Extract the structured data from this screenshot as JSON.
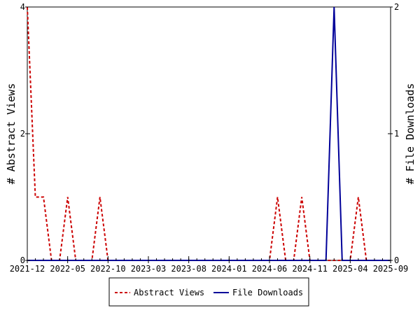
{
  "chart_data": {
    "type": "line",
    "title": "",
    "x_tick_labels": [
      "2021-12",
      "2022-05",
      "2022-10",
      "2023-03",
      "2023-08",
      "2024-01",
      "2024-06",
      "2024-11",
      "2025-04",
      "2025-09"
    ],
    "x_tick_step_months": 5,
    "x_range_months": [
      "2021-12",
      "2025-09"
    ],
    "y_left": {
      "label": "# Abstract Views",
      "range": [
        0,
        4
      ],
      "ticks": [
        "0",
        "2",
        "4"
      ]
    },
    "y_right": {
      "label": "# File Downloads",
      "range": [
        0,
        2
      ],
      "ticks": [
        "0",
        "1",
        "2"
      ]
    },
    "grid": false,
    "legend_position": "bottom-center",
    "series": [
      {
        "name": "Abstract Views",
        "axis": "left",
        "color": "#cc0000",
        "dash": true,
        "points": [
          [
            "2021-12",
            4
          ],
          [
            "2022-01",
            1
          ],
          [
            "2022-02",
            1
          ],
          [
            "2022-03",
            0
          ],
          [
            "2022-04",
            0
          ],
          [
            "2022-05",
            1
          ],
          [
            "2022-06",
            0
          ],
          [
            "2022-07",
            0
          ],
          [
            "2022-08",
            0
          ],
          [
            "2022-09",
            1
          ],
          [
            "2022-10",
            0
          ],
          [
            "2022-11",
            0
          ],
          [
            "2022-12",
            0
          ],
          [
            "2023-01",
            0
          ],
          [
            "2023-02",
            0
          ],
          [
            "2023-03",
            0
          ],
          [
            "2023-04",
            0
          ],
          [
            "2023-05",
            0
          ],
          [
            "2023-06",
            0
          ],
          [
            "2023-07",
            0
          ],
          [
            "2023-08",
            0
          ],
          [
            "2023-09",
            0
          ],
          [
            "2023-10",
            0
          ],
          [
            "2023-11",
            0
          ],
          [
            "2023-12",
            0
          ],
          [
            "2024-01",
            0
          ],
          [
            "2024-02",
            0
          ],
          [
            "2024-03",
            0
          ],
          [
            "2024-04",
            0
          ],
          [
            "2024-05",
            0
          ],
          [
            "2024-06",
            0
          ],
          [
            "2024-07",
            1
          ],
          [
            "2024-08",
            0
          ],
          [
            "2024-09",
            0
          ],
          [
            "2024-10",
            1
          ],
          [
            "2024-11",
            0
          ],
          [
            "2024-12",
            0
          ],
          [
            "2025-01",
            0
          ],
          [
            "2025-02",
            0
          ],
          [
            "2025-03",
            0
          ],
          [
            "2025-04",
            0
          ],
          [
            "2025-05",
            1
          ],
          [
            "2025-06",
            0
          ],
          [
            "2025-07",
            0
          ],
          [
            "2025-08",
            0
          ],
          [
            "2025-09",
            0
          ]
        ]
      },
      {
        "name": "File Downloads",
        "axis": "right",
        "color": "#000099",
        "dash": false,
        "points": [
          [
            "2021-12",
            0
          ],
          [
            "2022-01",
            0
          ],
          [
            "2022-02",
            0
          ],
          [
            "2022-03",
            0
          ],
          [
            "2022-04",
            0
          ],
          [
            "2022-05",
            0
          ],
          [
            "2022-06",
            0
          ],
          [
            "2022-07",
            0
          ],
          [
            "2022-08",
            0
          ],
          [
            "2022-09",
            0
          ],
          [
            "2022-10",
            0
          ],
          [
            "2022-11",
            0
          ],
          [
            "2022-12",
            0
          ],
          [
            "2023-01",
            0
          ],
          [
            "2023-02",
            0
          ],
          [
            "2023-03",
            0
          ],
          [
            "2023-04",
            0
          ],
          [
            "2023-05",
            0
          ],
          [
            "2023-06",
            0
          ],
          [
            "2023-07",
            0
          ],
          [
            "2023-08",
            0
          ],
          [
            "2023-09",
            0
          ],
          [
            "2023-10",
            0
          ],
          [
            "2023-11",
            0
          ],
          [
            "2023-12",
            0
          ],
          [
            "2024-01",
            0
          ],
          [
            "2024-02",
            0
          ],
          [
            "2024-03",
            0
          ],
          [
            "2024-04",
            0
          ],
          [
            "2024-05",
            0
          ],
          [
            "2024-06",
            0
          ],
          [
            "2024-07",
            0
          ],
          [
            "2024-08",
            0
          ],
          [
            "2024-09",
            0
          ],
          [
            "2024-10",
            0
          ],
          [
            "2024-11",
            0
          ],
          [
            "2024-12",
            0
          ],
          [
            "2025-01",
            0
          ],
          [
            "2025-02",
            2
          ],
          [
            "2025-03",
            0
          ],
          [
            "2025-04",
            0
          ],
          [
            "2025-05",
            0
          ],
          [
            "2025-06",
            0
          ],
          [
            "2025-07",
            0
          ],
          [
            "2025-08",
            0
          ],
          [
            "2025-09",
            0
          ]
        ]
      }
    ]
  }
}
